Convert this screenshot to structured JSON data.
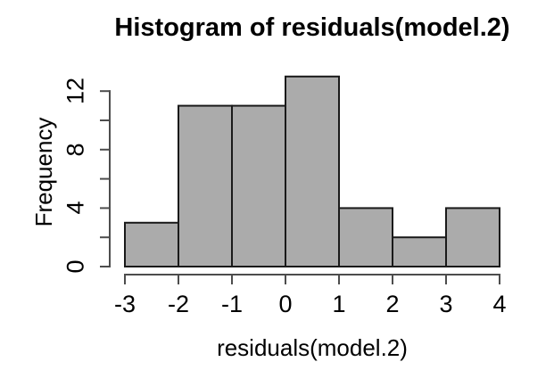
{
  "chart_data": {
    "type": "bar",
    "subtype": "histogram",
    "title": "Histogram of residuals(model.2)",
    "xlabel": "residuals(model.2)",
    "ylabel": "Frequency",
    "breaks": [
      -3,
      -2,
      -1,
      0,
      1,
      2,
      3,
      4
    ],
    "counts": [
      3,
      11,
      11,
      13,
      4,
      2,
      4
    ],
    "bins": [
      {
        "range": "[-3,-2]",
        "count": 3
      },
      {
        "range": "(-2,-1]",
        "count": 11
      },
      {
        "range": "(-1,0]",
        "count": 11
      },
      {
        "range": "(0,1]",
        "count": 13
      },
      {
        "range": "(1,2]",
        "count": 4
      },
      {
        "range": "(2,3]",
        "count": 2
      },
      {
        "range": "(3,4]",
        "count": 4
      }
    ],
    "x_ticks": [
      {
        "value": -3,
        "label": "-3"
      },
      {
        "value": -2,
        "label": "-2"
      },
      {
        "value": -1,
        "label": "-1"
      },
      {
        "value": 0,
        "label": "0"
      },
      {
        "value": 1,
        "label": "1"
      },
      {
        "value": 2,
        "label": "2"
      },
      {
        "value": 3,
        "label": "3"
      },
      {
        "value": 4,
        "label": "4"
      }
    ],
    "y_tick_values": [
      0,
      2,
      4,
      6,
      8,
      10,
      12
    ],
    "y_label_ticks": [
      {
        "value": 0,
        "label": "0"
      },
      {
        "value": 4,
        "label": "4"
      },
      {
        "value": 8,
        "label": "8"
      },
      {
        "value": 12,
        "label": "12"
      }
    ],
    "xlim": [
      -3,
      4
    ],
    "ylim": [
      0,
      13
    ],
    "grid": false,
    "legend": "none",
    "colors": {
      "bar_fill": "#ababab",
      "bar_border": "#1a1a1a",
      "axis": "#4d4d4d",
      "text": "#000000",
      "background": "#ffffff"
    }
  }
}
